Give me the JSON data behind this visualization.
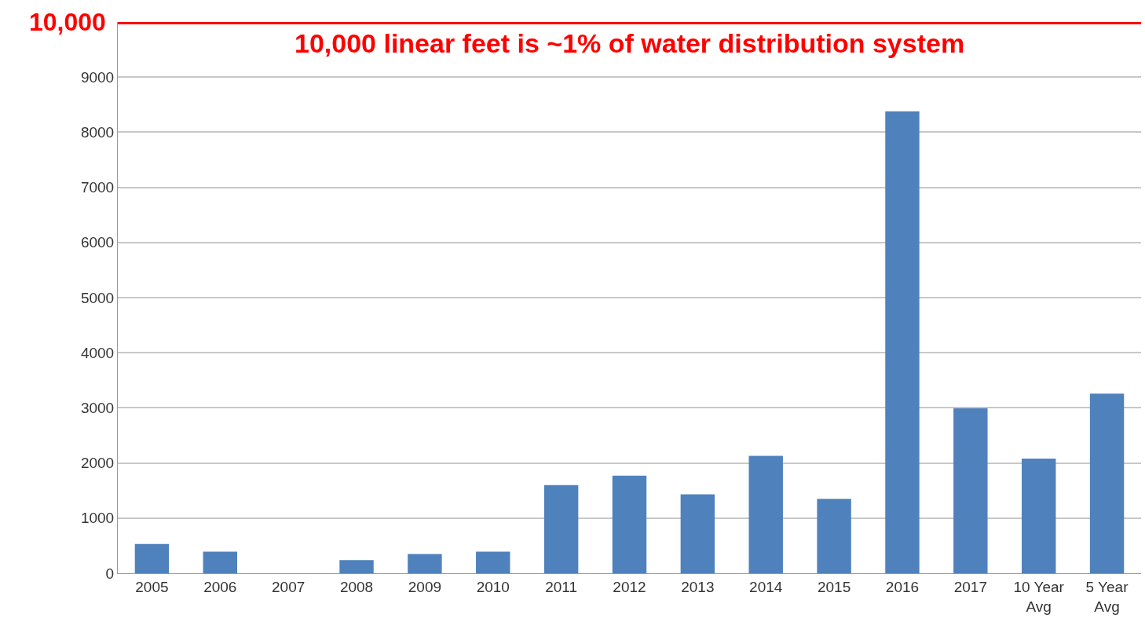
{
  "chart_data": {
    "type": "bar",
    "categories": [
      "2005",
      "2006",
      "2007",
      "2008",
      "2009",
      "2010",
      "2011",
      "2012",
      "2013",
      "2014",
      "2015",
      "2016",
      "2017",
      "10 Year\nAvg",
      "5 Year\nAvg"
    ],
    "values": [
      530,
      390,
      0,
      240,
      350,
      390,
      1600,
      1770,
      1430,
      2130,
      1350,
      8380,
      2990,
      2080,
      3260
    ],
    "color": "#4f81bd",
    "ylim": [
      0,
      10000
    ],
    "yticks": [
      0,
      1000,
      2000,
      3000,
      4000,
      5000,
      6000,
      7000,
      8000,
      9000
    ],
    "grid": "y",
    "legend": false,
    "ref_lines": [
      {
        "axis": "y",
        "value": 10000,
        "label": "10,000",
        "color": "#ff0000",
        "line_style": "solid"
      }
    ],
    "annotations": [
      {
        "text": "10,000 linear feet is ~1% of water distribution system",
        "y": 10000
      }
    ]
  }
}
